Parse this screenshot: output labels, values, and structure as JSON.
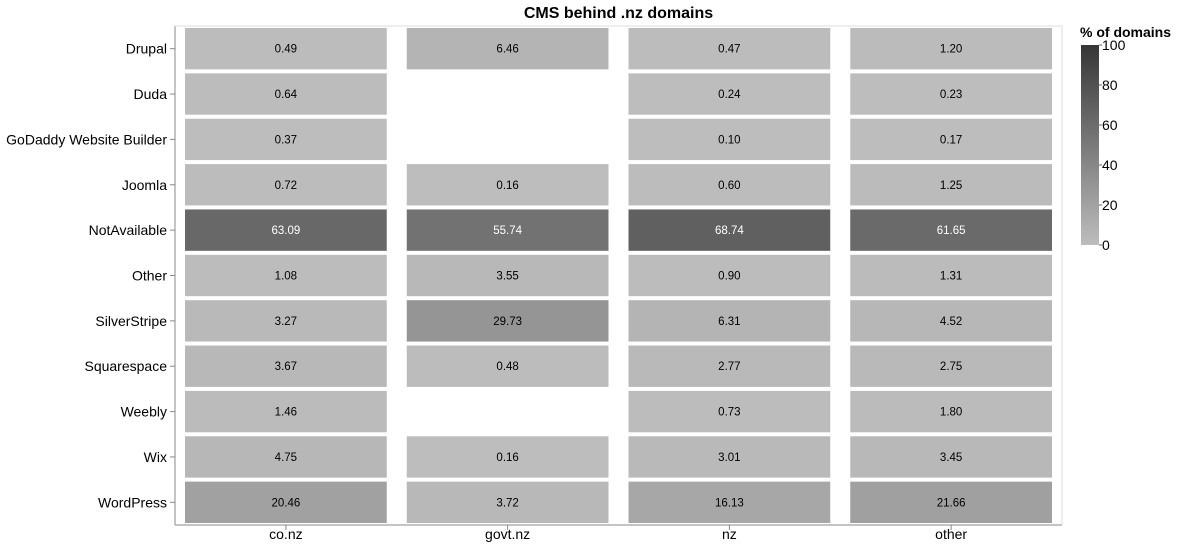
{
  "chart_data": {
    "type": "heatmap",
    "title": "CMS behind .nz domains",
    "xlabel": "",
    "ylabel": "",
    "x_categories": [
      "co.nz",
      "govt.nz",
      "nz",
      "other"
    ],
    "y_categories": [
      "Drupal",
      "Duda",
      "GoDaddy Website Builder",
      "Joomla",
      "NotAvailable",
      "Other",
      "SilverStripe",
      "Squarespace",
      "Weebly",
      "Wix",
      "WordPress"
    ],
    "values": [
      [
        0.49,
        6.46,
        0.47,
        1.2
      ],
      [
        0.64,
        null,
        0.24,
        0.23
      ],
      [
        0.37,
        null,
        0.1,
        0.17
      ],
      [
        0.72,
        0.16,
        0.6,
        1.25
      ],
      [
        63.09,
        55.74,
        68.74,
        61.65
      ],
      [
        1.08,
        3.55,
        0.9,
        1.31
      ],
      [
        3.27,
        29.73,
        6.31,
        4.52
      ],
      [
        3.67,
        0.48,
        2.77,
        2.75
      ],
      [
        1.46,
        null,
        0.73,
        1.8
      ],
      [
        4.75,
        0.16,
        3.01,
        3.45
      ],
      [
        20.46,
        3.72,
        16.13,
        21.66
      ]
    ],
    "value_labels": [
      [
        "0.49",
        "6.46",
        "0.47",
        "1.20"
      ],
      [
        "0.64",
        "",
        "0.24",
        "0.23"
      ],
      [
        "0.37",
        "",
        "0.10",
        "0.17"
      ],
      [
        "0.72",
        "0.16",
        "0.60",
        "1.25"
      ],
      [
        "63.09",
        "55.74",
        "68.74",
        "61.65"
      ],
      [
        "1.08",
        "3.55",
        "0.90",
        "1.31"
      ],
      [
        "3.27",
        "29.73",
        "6.31",
        "4.52"
      ],
      [
        "3.67",
        "0.48",
        "2.77",
        "2.75"
      ],
      [
        "1.46",
        "",
        "0.73",
        "1.80"
      ],
      [
        "4.75",
        "0.16",
        "3.01",
        "3.45"
      ],
      [
        "20.46",
        "3.72",
        "16.13",
        "21.66"
      ]
    ],
    "color_scale": {
      "title": "% of domains",
      "domain": [
        0,
        100
      ],
      "ticks": [
        0,
        20,
        40,
        60,
        80,
        100
      ],
      "tick_labels": [
        "0",
        "20",
        "40",
        "60",
        "80",
        "100"
      ],
      "low_color": "#bdbdbd",
      "high_color": "#363636"
    },
    "legend_position": "right"
  }
}
